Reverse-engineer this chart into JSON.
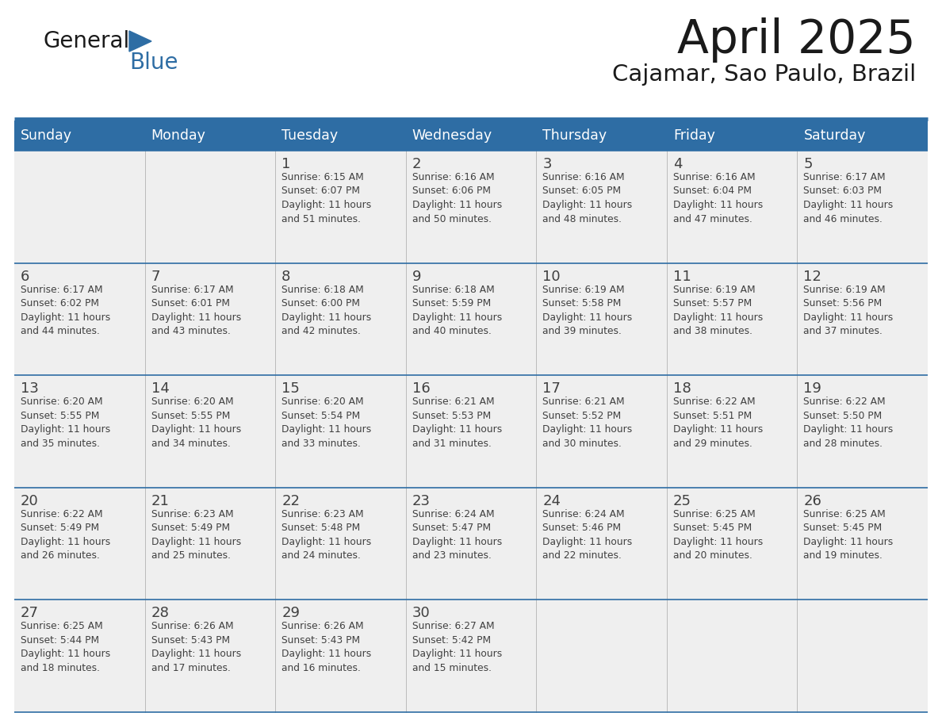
{
  "title": "April 2025",
  "subtitle": "Cajamar, Sao Paulo, Brazil",
  "days_of_week": [
    "Sunday",
    "Monday",
    "Tuesday",
    "Wednesday",
    "Thursday",
    "Friday",
    "Saturday"
  ],
  "header_bg": "#2E6DA4",
  "header_text": "#FFFFFF",
  "cell_bg": "#EFEFEF",
  "border_color": "#2E6DA4",
  "text_color": "#404040",
  "logo_general_color": "#1a1a1a",
  "logo_blue_color": "#2E6DA4",
  "calendar_data": [
    [
      {
        "day": null,
        "info": ""
      },
      {
        "day": null,
        "info": ""
      },
      {
        "day": 1,
        "info": "Sunrise: 6:15 AM\nSunset: 6:07 PM\nDaylight: 11 hours\nand 51 minutes."
      },
      {
        "day": 2,
        "info": "Sunrise: 6:16 AM\nSunset: 6:06 PM\nDaylight: 11 hours\nand 50 minutes."
      },
      {
        "day": 3,
        "info": "Sunrise: 6:16 AM\nSunset: 6:05 PM\nDaylight: 11 hours\nand 48 minutes."
      },
      {
        "day": 4,
        "info": "Sunrise: 6:16 AM\nSunset: 6:04 PM\nDaylight: 11 hours\nand 47 minutes."
      },
      {
        "day": 5,
        "info": "Sunrise: 6:17 AM\nSunset: 6:03 PM\nDaylight: 11 hours\nand 46 minutes."
      }
    ],
    [
      {
        "day": 6,
        "info": "Sunrise: 6:17 AM\nSunset: 6:02 PM\nDaylight: 11 hours\nand 44 minutes."
      },
      {
        "day": 7,
        "info": "Sunrise: 6:17 AM\nSunset: 6:01 PM\nDaylight: 11 hours\nand 43 minutes."
      },
      {
        "day": 8,
        "info": "Sunrise: 6:18 AM\nSunset: 6:00 PM\nDaylight: 11 hours\nand 42 minutes."
      },
      {
        "day": 9,
        "info": "Sunrise: 6:18 AM\nSunset: 5:59 PM\nDaylight: 11 hours\nand 40 minutes."
      },
      {
        "day": 10,
        "info": "Sunrise: 6:19 AM\nSunset: 5:58 PM\nDaylight: 11 hours\nand 39 minutes."
      },
      {
        "day": 11,
        "info": "Sunrise: 6:19 AM\nSunset: 5:57 PM\nDaylight: 11 hours\nand 38 minutes."
      },
      {
        "day": 12,
        "info": "Sunrise: 6:19 AM\nSunset: 5:56 PM\nDaylight: 11 hours\nand 37 minutes."
      }
    ],
    [
      {
        "day": 13,
        "info": "Sunrise: 6:20 AM\nSunset: 5:55 PM\nDaylight: 11 hours\nand 35 minutes."
      },
      {
        "day": 14,
        "info": "Sunrise: 6:20 AM\nSunset: 5:55 PM\nDaylight: 11 hours\nand 34 minutes."
      },
      {
        "day": 15,
        "info": "Sunrise: 6:20 AM\nSunset: 5:54 PM\nDaylight: 11 hours\nand 33 minutes."
      },
      {
        "day": 16,
        "info": "Sunrise: 6:21 AM\nSunset: 5:53 PM\nDaylight: 11 hours\nand 31 minutes."
      },
      {
        "day": 17,
        "info": "Sunrise: 6:21 AM\nSunset: 5:52 PM\nDaylight: 11 hours\nand 30 minutes."
      },
      {
        "day": 18,
        "info": "Sunrise: 6:22 AM\nSunset: 5:51 PM\nDaylight: 11 hours\nand 29 minutes."
      },
      {
        "day": 19,
        "info": "Sunrise: 6:22 AM\nSunset: 5:50 PM\nDaylight: 11 hours\nand 28 minutes."
      }
    ],
    [
      {
        "day": 20,
        "info": "Sunrise: 6:22 AM\nSunset: 5:49 PM\nDaylight: 11 hours\nand 26 minutes."
      },
      {
        "day": 21,
        "info": "Sunrise: 6:23 AM\nSunset: 5:49 PM\nDaylight: 11 hours\nand 25 minutes."
      },
      {
        "day": 22,
        "info": "Sunrise: 6:23 AM\nSunset: 5:48 PM\nDaylight: 11 hours\nand 24 minutes."
      },
      {
        "day": 23,
        "info": "Sunrise: 6:24 AM\nSunset: 5:47 PM\nDaylight: 11 hours\nand 23 minutes."
      },
      {
        "day": 24,
        "info": "Sunrise: 6:24 AM\nSunset: 5:46 PM\nDaylight: 11 hours\nand 22 minutes."
      },
      {
        "day": 25,
        "info": "Sunrise: 6:25 AM\nSunset: 5:45 PM\nDaylight: 11 hours\nand 20 minutes."
      },
      {
        "day": 26,
        "info": "Sunrise: 6:25 AM\nSunset: 5:45 PM\nDaylight: 11 hours\nand 19 minutes."
      }
    ],
    [
      {
        "day": 27,
        "info": "Sunrise: 6:25 AM\nSunset: 5:44 PM\nDaylight: 11 hours\nand 18 minutes."
      },
      {
        "day": 28,
        "info": "Sunrise: 6:26 AM\nSunset: 5:43 PM\nDaylight: 11 hours\nand 17 minutes."
      },
      {
        "day": 29,
        "info": "Sunrise: 6:26 AM\nSunset: 5:43 PM\nDaylight: 11 hours\nand 16 minutes."
      },
      {
        "day": 30,
        "info": "Sunrise: 6:27 AM\nSunset: 5:42 PM\nDaylight: 11 hours\nand 15 minutes."
      },
      {
        "day": null,
        "info": ""
      },
      {
        "day": null,
        "info": ""
      },
      {
        "day": null,
        "info": ""
      }
    ]
  ]
}
